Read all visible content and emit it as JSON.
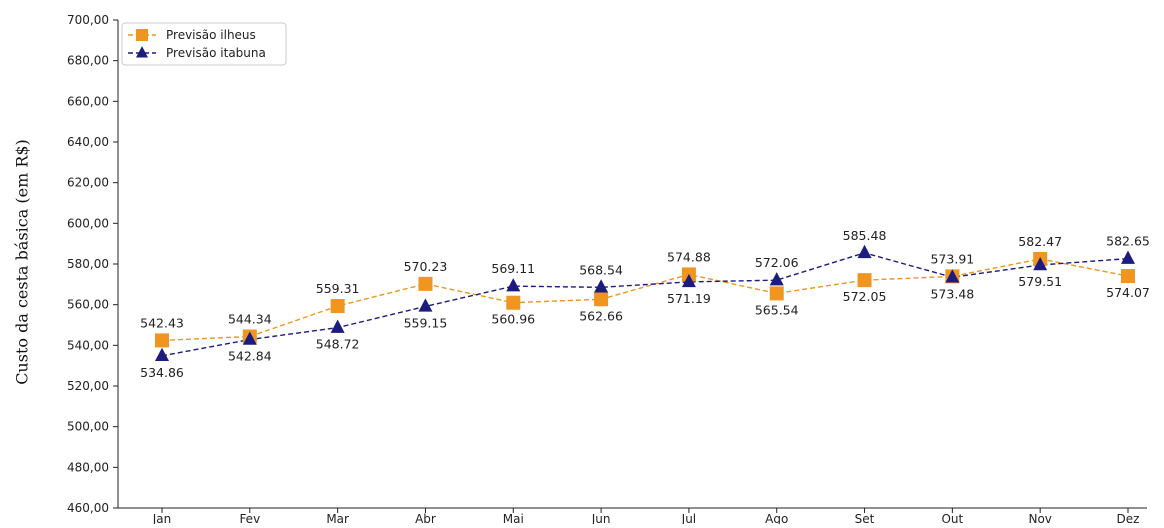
{
  "chart_data": {
    "type": "line",
    "title": "",
    "xlabel": "",
    "ylabel": "Custo da cesta básica (em R$)",
    "categories": [
      "Jan",
      "Fev",
      "Mar",
      "Abr",
      "Mai",
      "Jun",
      "Jul",
      "Ago",
      "Set",
      "Out",
      "Nov",
      "Dez"
    ],
    "ylim": [
      460,
      700
    ],
    "yticks": [
      460,
      480,
      500,
      520,
      540,
      560,
      580,
      600,
      620,
      640,
      660,
      680,
      700
    ],
    "ytick_labels": [
      "460,00",
      "480,00",
      "500,00",
      "520,00",
      "540,00",
      "560,00",
      "580,00",
      "600,00",
      "620,00",
      "640,00",
      "660,00",
      "680,00",
      "700,00"
    ],
    "legend_position": "top-left",
    "grid": false,
    "series": [
      {
        "name": "Previsão ilheus",
        "color": "#f0951f",
        "marker": "square",
        "line_style": "dashed",
        "values": [
          542.43,
          544.34,
          559.31,
          570.23,
          560.96,
          562.66,
          574.88,
          565.54,
          572.05,
          573.91,
          582.47,
          574.07
        ],
        "labels": [
          "542.43",
          "544.34",
          "559.31",
          "570.23",
          "560.96",
          "562.66",
          "574.88",
          "565.54",
          "572.05",
          "573.91",
          "582.47",
          "574.07"
        ],
        "label_positions": [
          "above",
          "above",
          "above",
          "above",
          "below",
          "below",
          "above",
          "below",
          "below",
          "above",
          "above",
          "below"
        ]
      },
      {
        "name": "Previsão itabuna",
        "color": "#1c1c7e",
        "marker": "triangle",
        "line_style": "dashed",
        "values": [
          534.86,
          542.84,
          548.72,
          559.15,
          569.11,
          568.54,
          571.19,
          572.06,
          585.48,
          573.48,
          579.51,
          582.65
        ],
        "labels": [
          "534.86",
          "542.84",
          "548.72",
          "559.15",
          "569.11",
          "568.54",
          "571.19",
          "572.06",
          "585.48",
          "573.48",
          "579.51",
          "582.65"
        ],
        "label_positions": [
          "below",
          "below",
          "below",
          "below",
          "above",
          "above",
          "below",
          "above",
          "above",
          "below",
          "below",
          "above"
        ]
      }
    ]
  }
}
